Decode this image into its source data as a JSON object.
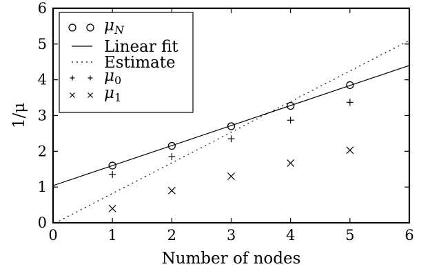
{
  "chart_data": {
    "type": "scatter",
    "xlabel": "Number of nodes",
    "ylabel": "1/μ",
    "xlim": [
      0,
      6
    ],
    "ylim": [
      0,
      6
    ],
    "x_ticks": [
      "0",
      "1",
      "2",
      "3",
      "4",
      "5",
      "6"
    ],
    "y_ticks": [
      "0",
      "1",
      "2",
      "3",
      "4",
      "5",
      "6"
    ],
    "grid": false,
    "legend_position": "top-left",
    "series": [
      {
        "name": "μ_N",
        "label_main": "μ",
        "label_sub": "N",
        "kind": "scatter",
        "marker": "circle",
        "x": [
          1,
          2,
          3,
          4,
          5
        ],
        "y": [
          1.6,
          2.15,
          2.7,
          3.27,
          3.85
        ]
      },
      {
        "name": "Linear fit",
        "kind": "line",
        "style": "solid",
        "x": [
          0,
          6
        ],
        "y": [
          1.04,
          4.4
        ]
      },
      {
        "name": "Estimate",
        "kind": "line",
        "style": "dotted",
        "x": [
          0.1,
          6
        ],
        "y": [
          0.05,
          5.1
        ]
      },
      {
        "name": "μ_0",
        "label_main": "μ",
        "label_sub": "0",
        "kind": "scatter",
        "marker": "plus",
        "x": [
          1,
          2,
          3,
          4,
          5
        ],
        "y": [
          1.35,
          1.85,
          2.35,
          2.87,
          3.37
        ]
      },
      {
        "name": "μ_1",
        "label_main": "μ",
        "label_sub": "1",
        "kind": "scatter",
        "marker": "x",
        "x": [
          1,
          2,
          3,
          4,
          5
        ],
        "y": [
          0.4,
          0.9,
          1.3,
          1.67,
          2.03
        ]
      }
    ]
  }
}
